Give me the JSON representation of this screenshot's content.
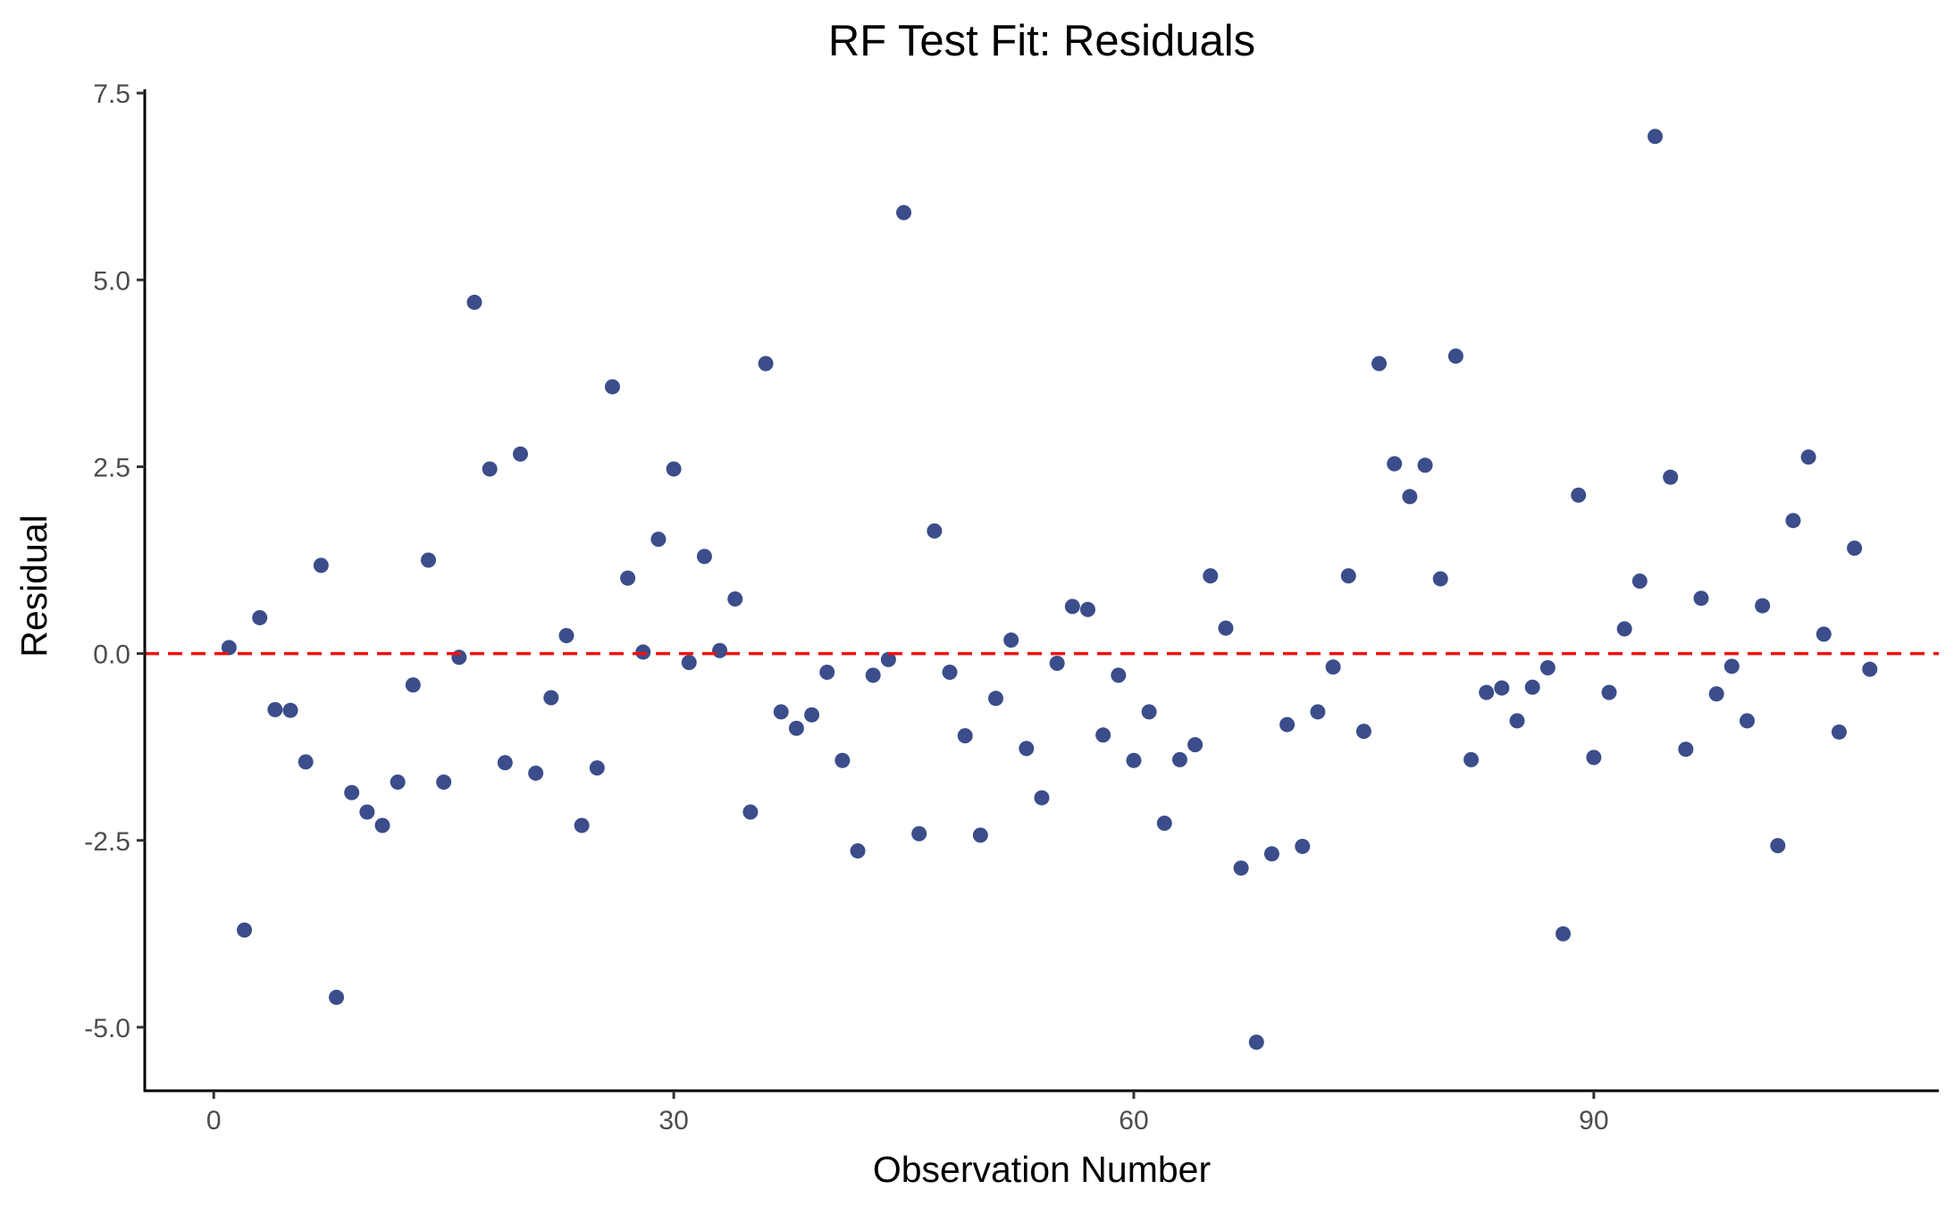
{
  "chart_data": {
    "type": "scatter",
    "title": "RF Test Fit: Residuals",
    "xlabel": "Observation Number",
    "ylabel": "Residual",
    "xlim": [
      -4.5,
      112.5
    ],
    "ylim": [
      -5.85,
      7.55
    ],
    "x_ticks": [
      0,
      30,
      60,
      90
    ],
    "x_tick_labels": [
      "0",
      "30",
      "60",
      "90"
    ],
    "y_ticks": [
      -5.0,
      -2.5,
      0.0,
      2.5,
      5.0,
      7.5
    ],
    "y_tick_labels": [
      "-5.0",
      "-2.5",
      "0.0",
      "2.5",
      "5.0",
      "7.5"
    ],
    "grid": false,
    "reference_line": {
      "y": 0,
      "style": "dashed",
      "color": "#ee1111"
    },
    "point_color": "#3b4d8a",
    "series": [
      {
        "x": [
          1,
          2,
          3,
          4,
          5,
          6,
          7,
          8,
          9,
          10,
          11,
          12,
          13,
          14,
          15,
          16,
          17,
          18,
          19,
          20,
          21,
          22,
          23,
          24,
          25,
          26,
          27,
          28,
          29,
          30,
          31,
          32,
          33,
          34,
          35,
          36,
          37,
          38,
          39,
          40,
          41,
          42,
          43,
          44,
          45,
          46,
          47,
          48,
          49,
          50,
          51,
          52,
          53,
          54,
          55,
          56,
          57,
          58,
          59,
          60,
          61,
          62,
          63,
          64,
          65,
          66,
          67,
          68,
          69,
          70,
          71,
          72,
          73,
          74,
          75,
          76,
          77,
          78,
          79,
          80,
          81,
          82,
          83,
          84,
          85,
          86,
          87,
          88,
          89,
          90,
          91,
          92,
          93,
          94,
          95,
          96,
          97,
          98,
          99,
          100,
          101,
          102,
          103,
          104,
          105,
          106,
          107,
          108
        ],
        "y": [
          0.08,
          -3.7,
          0.48,
          -0.75,
          -0.76,
          -1.45,
          1.18,
          -4.6,
          -1.86,
          -2.12,
          -2.3,
          -1.72,
          -0.42,
          1.25,
          -1.72,
          -0.05,
          4.7,
          2.47,
          -1.46,
          2.67,
          -1.6,
          -0.59,
          0.24,
          -2.3,
          -1.53,
          3.57,
          1.01,
          0.02,
          1.53,
          2.47,
          -0.12,
          1.3,
          0.04,
          0.73,
          -2.12,
          3.88,
          -0.78,
          -1.0,
          -0.82,
          -0.25,
          -1.43,
          -2.64,
          -0.29,
          -0.08,
          5.9,
          -2.41,
          1.64,
          -0.25,
          -1.1,
          -2.43,
          -0.6,
          0.18,
          -1.27,
          -1.93,
          -0.13,
          0.63,
          0.59,
          -1.09,
          -0.29,
          -1.43,
          -0.78,
          -2.27,
          -1.42,
          -1.22,
          1.04,
          0.34,
          -2.87,
          -5.2,
          -2.68,
          -0.95,
          -2.58,
          -0.78,
          -0.18,
          1.04,
          -1.04,
          3.88,
          2.54,
          2.1,
          2.52,
          1.0,
          3.98,
          -1.42,
          -0.52,
          -0.46,
          -0.9,
          -0.45,
          -0.19,
          -3.75,
          2.12,
          -1.39,
          -0.52,
          0.33,
          0.97,
          6.92,
          2.36,
          -1.28,
          0.74,
          -0.54,
          -0.17,
          -0.9,
          0.64,
          -2.57,
          1.78,
          2.63,
          0.26,
          -1.05,
          1.41,
          -0.21
        ]
      }
    ]
  }
}
